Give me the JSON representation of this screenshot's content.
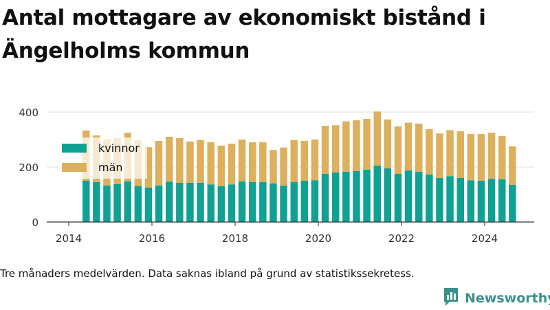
{
  "title": "Antal mottagare av ekonomiskt bistånd i Ängelholms kommun",
  "footnote": "Tre månaders medelvärden. Data saknas ibland på grund av statistikssekretess.",
  "brand": {
    "name": "Newsworthy",
    "icon": "bar-chart-logo-icon",
    "color": "#3d8f8b"
  },
  "chart_data": {
    "type": "bar",
    "stacked": true,
    "title": "",
    "xlabel": "",
    "ylabel": "",
    "x_ticks": [
      "2014",
      "2016",
      "2018",
      "2020",
      "2022",
      "2024"
    ],
    "y_ticks": [
      0,
      200,
      400
    ],
    "ylim": [
      0,
      400
    ],
    "grid": true,
    "legend_position": "top-left",
    "categories": [
      "2014-06",
      "2014-09",
      "2014-12",
      "2015-03",
      "2015-06",
      "2015-09",
      "2015-12",
      "2016-03",
      "2016-06",
      "2016-09",
      "2016-12",
      "2017-03",
      "2017-06",
      "2017-09",
      "2017-12",
      "2018-03",
      "2018-06",
      "2018-09",
      "2018-12",
      "2019-03",
      "2019-06",
      "2019-09",
      "2019-12",
      "2020-03",
      "2020-06",
      "2020-09",
      "2020-12",
      "2021-03",
      "2021-06",
      "2021-09",
      "2021-12",
      "2022-03",
      "2022-06",
      "2022-09",
      "2022-12",
      "2023-03",
      "2023-06",
      "2023-09",
      "2023-12",
      "2024-03",
      "2024-06",
      "2024-09"
    ],
    "series": [
      {
        "name": "kvinnor",
        "color": "#0fa194",
        "values": [
          150,
          145,
          133,
          138,
          148,
          130,
          125,
          133,
          147,
          143,
          143,
          143,
          137,
          130,
          137,
          148,
          145,
          145,
          140,
          133,
          145,
          150,
          152,
          175,
          180,
          183,
          185,
          190,
          205,
          195,
          175,
          188,
          183,
          173,
          160,
          167,
          160,
          152,
          150,
          157,
          155,
          135
        ]
      },
      {
        "name": "män",
        "color": "#dcb05c",
        "values": [
          183,
          170,
          168,
          167,
          177,
          168,
          147,
          162,
          163,
          162,
          150,
          155,
          153,
          148,
          148,
          152,
          145,
          145,
          122,
          138,
          153,
          145,
          148,
          175,
          172,
          183,
          185,
          185,
          197,
          178,
          173,
          173,
          175,
          165,
          162,
          167,
          170,
          168,
          170,
          168,
          158,
          140
        ]
      }
    ]
  }
}
